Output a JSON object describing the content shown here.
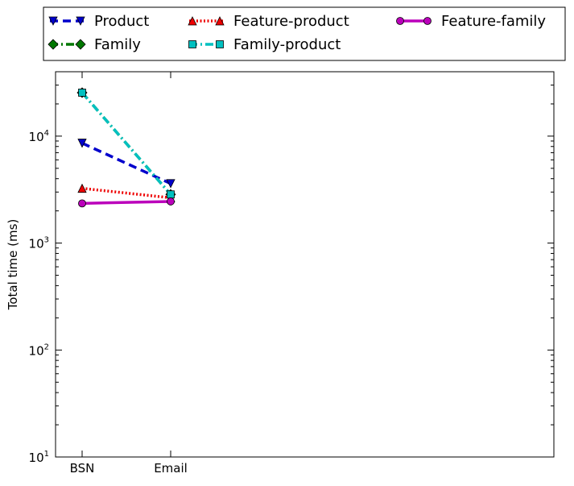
{
  "chart_data": {
    "type": "line",
    "ylabel": "Total time (ms)",
    "xlabel": "",
    "y_scale": "log",
    "ylim": [
      10,
      40000
    ],
    "categories": [
      "BSN",
      "Email"
    ],
    "y_ticks": [
      {
        "value": 10,
        "base": "10",
        "exp": "1"
      },
      {
        "value": 100,
        "base": "10",
        "exp": "2"
      },
      {
        "value": 1000,
        "base": "10",
        "exp": "3"
      },
      {
        "value": 10000,
        "base": "10",
        "exp": "4"
      }
    ],
    "legend_position": "top",
    "grid": false,
    "series": [
      {
        "name": "Product",
        "values": [
          8600,
          3600
        ],
        "color": "#0000cc",
        "dash": "10,6",
        "marker": "triangle-down"
      },
      {
        "name": "Family",
        "values": [
          25500,
          2850
        ],
        "color": "#007700",
        "dash": "10,4,2,4",
        "marker": "diamond"
      },
      {
        "name": "Feature-product",
        "values": [
          3250,
          2650
        ],
        "color": "#ee0000",
        "dash": "2,2.5",
        "marker": "triangle-up"
      },
      {
        "name": "Family-product",
        "values": [
          25500,
          2850
        ],
        "color": "#00c0c0",
        "dash": "10,4,2,4",
        "marker": "square"
      },
      {
        "name": "Feature-family",
        "values": [
          2350,
          2450
        ],
        "color": "#bb00bb",
        "dash": "",
        "marker": "circle"
      }
    ]
  }
}
